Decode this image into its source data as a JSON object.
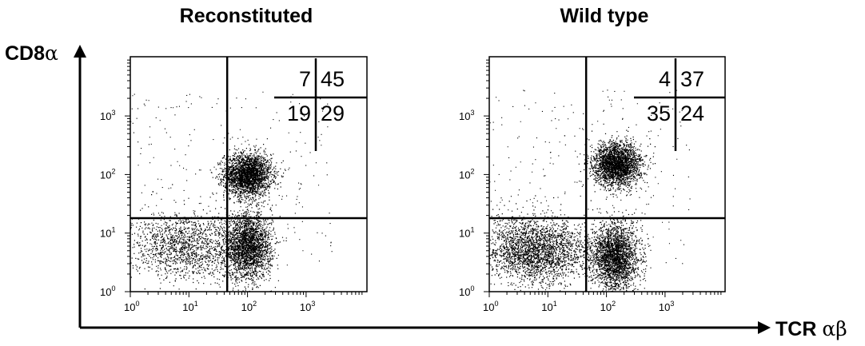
{
  "figure": {
    "y_axis_label_prefix": "CD8",
    "y_axis_label_greek": "α",
    "x_axis_label_prefix": "TCR ",
    "x_axis_label_greek": "αβ"
  },
  "chart_data": [
    {
      "type": "scatter",
      "title": "Reconstituted",
      "xlabel": "TCR αβ",
      "ylabel": "CD8α",
      "xscale": "log",
      "yscale": "log",
      "xlim": [
        1,
        10000
      ],
      "ylim": [
        1,
        10000
      ],
      "x_tick_labels": [
        "10^0",
        "10^1",
        "10^2",
        "10^3"
      ],
      "y_tick_labels": [
        "10^0",
        "10^1",
        "10^2",
        "10^3"
      ],
      "gate": {
        "x": 45,
        "y": 18
      },
      "quadrant_percentages": {
        "upper_left": 7,
        "upper_right": 45,
        "lower_left": 19,
        "lower_right": 29
      },
      "populations": [
        {
          "name": "CD8+ TCR+",
          "x_center": 100,
          "y_center": 100,
          "density": "high"
        },
        {
          "name": "CD8- TCR+",
          "x_center": 100,
          "y_center": 6,
          "density": "high"
        },
        {
          "name": "CD8- TCR-",
          "x_center": 8,
          "y_center": 6,
          "density": "medium"
        }
      ]
    },
    {
      "type": "scatter",
      "title": "Wild type",
      "xlabel": "TCR αβ",
      "ylabel": "CD8α",
      "xscale": "log",
      "yscale": "log",
      "xlim": [
        1,
        10000
      ],
      "ylim": [
        1,
        10000
      ],
      "x_tick_labels": [
        "10^0",
        "10^1",
        "10^2",
        "10^3"
      ],
      "y_tick_labels": [
        "10^0",
        "10^1",
        "10^2",
        "10^3"
      ],
      "gate": {
        "x": 45,
        "y": 18
      },
      "quadrant_percentages": {
        "upper_left": 4,
        "upper_right": 37,
        "lower_left": 35,
        "lower_right": 24
      },
      "populations": [
        {
          "name": "CD8+ TCR+",
          "x_center": 150,
          "y_center": 150,
          "density": "high"
        },
        {
          "name": "CD8- TCR+",
          "x_center": 140,
          "y_center": 4,
          "density": "high"
        },
        {
          "name": "CD8- TCR-",
          "x_center": 6,
          "y_center": 5,
          "density": "high"
        }
      ]
    }
  ]
}
